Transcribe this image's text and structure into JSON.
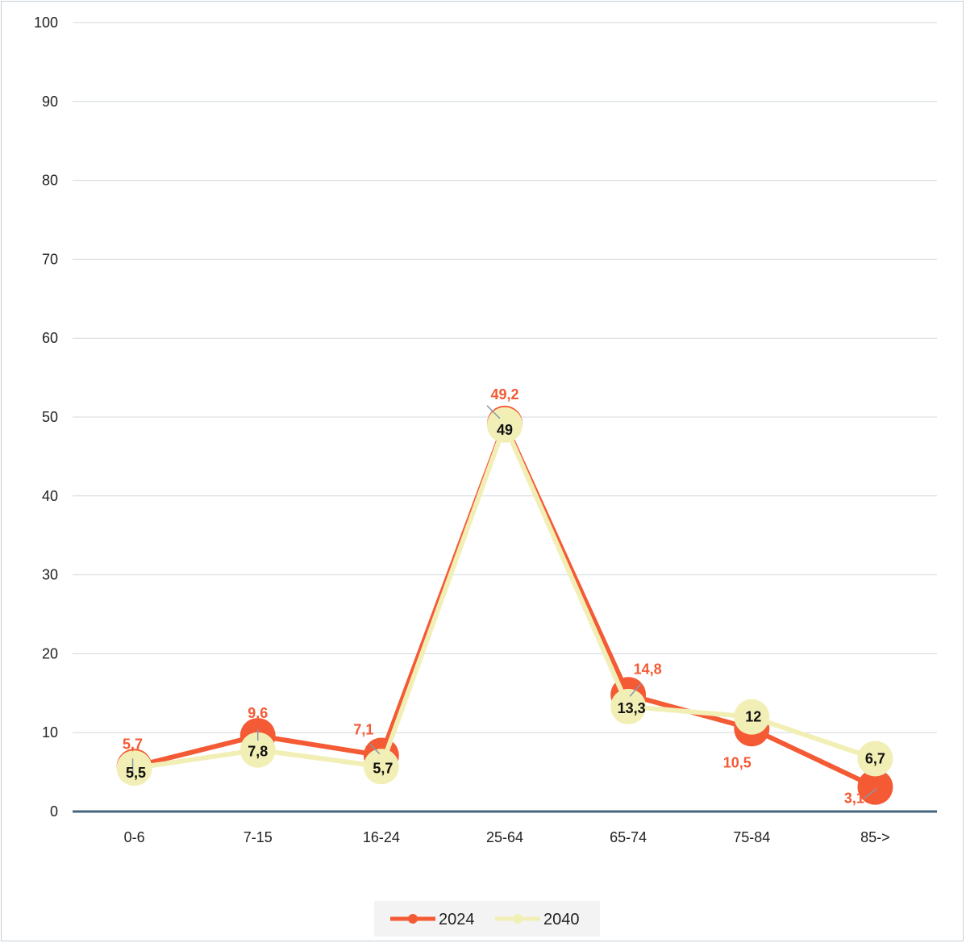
{
  "chart_data": {
    "type": "line",
    "categories": [
      "0-6",
      "7-15",
      "16-24",
      "25-64",
      "65-74",
      "75-84",
      "85->"
    ],
    "series": [
      {
        "name": "2024",
        "values": [
          5.7,
          9.6,
          7.1,
          49.2,
          14.8,
          10.5,
          3.1
        ],
        "labels": [
          "5,7",
          "9,6",
          "7,1",
          "49,2",
          "14,8",
          "10,5",
          "3,1"
        ],
        "color": "#f45a34"
      },
      {
        "name": "2040",
        "values": [
          5.5,
          7.8,
          5.7,
          49,
          13.3,
          12,
          6.7
        ],
        "labels": [
          "5,5",
          "7,8",
          "5,7",
          "49",
          "13,3",
          "12",
          "6,7"
        ],
        "color": "#f2efb6"
      }
    ],
    "y_ticks": [
      "0",
      "10",
      "20",
      "30",
      "40",
      "50",
      "60",
      "70",
      "80",
      "90",
      "100"
    ],
    "ylim": [
      0,
      100
    ],
    "grid": true,
    "legend_position": "bottom"
  }
}
